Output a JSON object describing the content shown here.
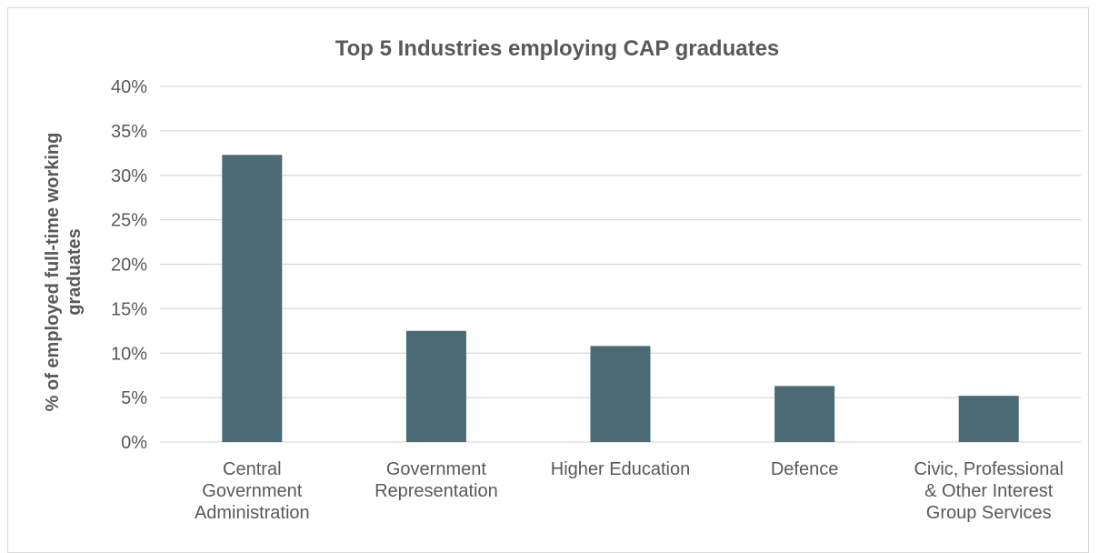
{
  "chart_data": {
    "type": "bar",
    "title": "Top 5 Industries employing CAP graduates",
    "ylabel": [
      "% of employed full-time working",
      "graduates"
    ],
    "xlabel": "",
    "categories": [
      [
        "Central",
        "Government",
        "Administration"
      ],
      [
        "Government",
        "Representation"
      ],
      [
        "Higher Education"
      ],
      [
        "Defence"
      ],
      [
        "Civic, Professional",
        "& Other Interest",
        "Group Services"
      ]
    ],
    "values": [
      32.3,
      12.5,
      10.8,
      6.3,
      5.2
    ],
    "ylim": [
      0,
      40
    ],
    "yticks": [
      "0%",
      "5%",
      "10%",
      "15%",
      "20%",
      "25%",
      "30%",
      "35%",
      "40%"
    ],
    "grid": true,
    "bar_color": "#4a6a74",
    "grid_color": "#d9d9d9"
  }
}
